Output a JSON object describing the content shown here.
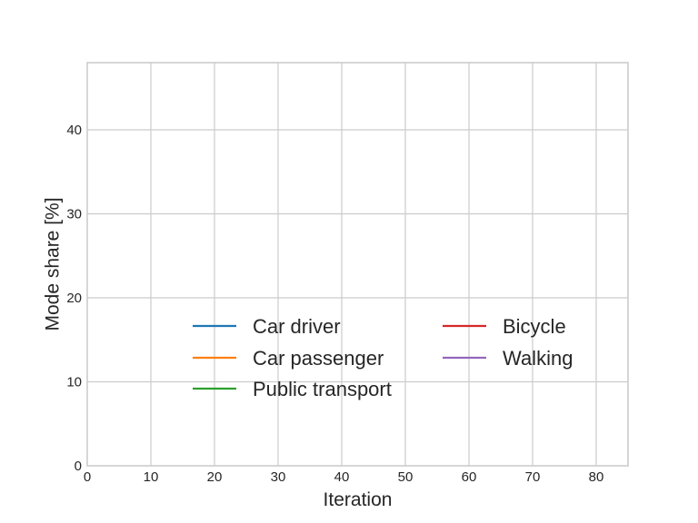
{
  "chart_data": {
    "type": "line",
    "title": "",
    "xlabel": "Iteration",
    "ylabel": "Mode share [%]",
    "xlim": [
      0,
      85
    ],
    "ylim": [
      0,
      48
    ],
    "xticks": [
      0,
      10,
      20,
      30,
      40,
      50,
      60,
      70,
      80
    ],
    "yticks": [
      0,
      10,
      20,
      30,
      40
    ],
    "grid": true,
    "legend": {
      "placement": "lower-center",
      "columns": 2,
      "entries": [
        {
          "name": "Car driver",
          "color": "#1f77b4"
        },
        {
          "name": "Car passenger",
          "color": "#ff7f0e"
        },
        {
          "name": "Public transport",
          "color": "#2ca02c"
        },
        {
          "name": "Bicycle",
          "color": "#d62728"
        },
        {
          "name": "Walking",
          "color": "#9467bd"
        }
      ]
    },
    "series": [
      {
        "name": "Car driver",
        "color": "#1f77b4",
        "x": [],
        "y": []
      },
      {
        "name": "Car passenger",
        "color": "#ff7f0e",
        "x": [],
        "y": []
      },
      {
        "name": "Public transport",
        "color": "#2ca02c",
        "x": [],
        "y": []
      },
      {
        "name": "Bicycle",
        "color": "#d62728",
        "x": [],
        "y": []
      },
      {
        "name": "Walking",
        "color": "#9467bd",
        "x": [],
        "y": []
      }
    ]
  }
}
